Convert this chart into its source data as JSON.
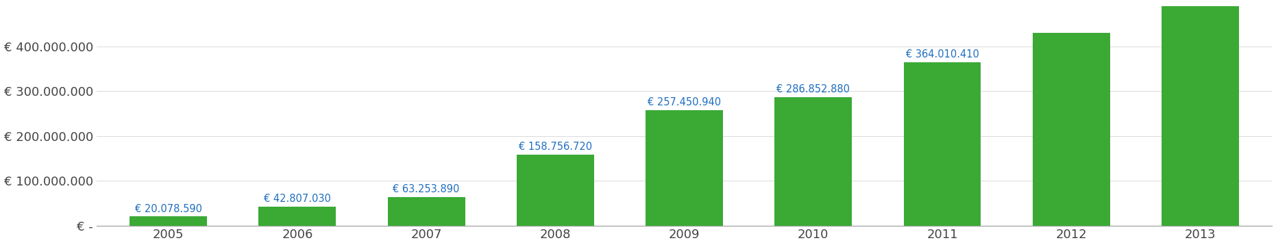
{
  "years": [
    "2005",
    "2006",
    "2007",
    "2008",
    "2009",
    "2010",
    "2011",
    "2012",
    "2013"
  ],
  "values": [
    20078590,
    42807030,
    63253890,
    158756720,
    257450940,
    286852880,
    364010410,
    430000000,
    490000000
  ],
  "labels": [
    "€ 20.078.590",
    "€ 42.807.030",
    "€ 63.253.890",
    "€ 158.756.720",
    "€ 257.450.940",
    "€ 286.852.880",
    "€ 364.010.410",
    "",
    ""
  ],
  "bar_color": "#3aaa35",
  "label_color": "#1F6FBF",
  "ytick_labels": [
    "€ -",
    "€ 100.000.000",
    "€ 200.000.000",
    "€ 300.000.000",
    "€ 400.000.000"
  ],
  "ytick_values": [
    0,
    100000000,
    200000000,
    300000000,
    400000000
  ],
  "ylim": [
    0,
    400000000
  ],
  "background_color": "#ffffff",
  "bar_width": 0.6,
  "label_fontsize": 10.5,
  "tick_fontsize": 13,
  "tick_color": "#444444"
}
